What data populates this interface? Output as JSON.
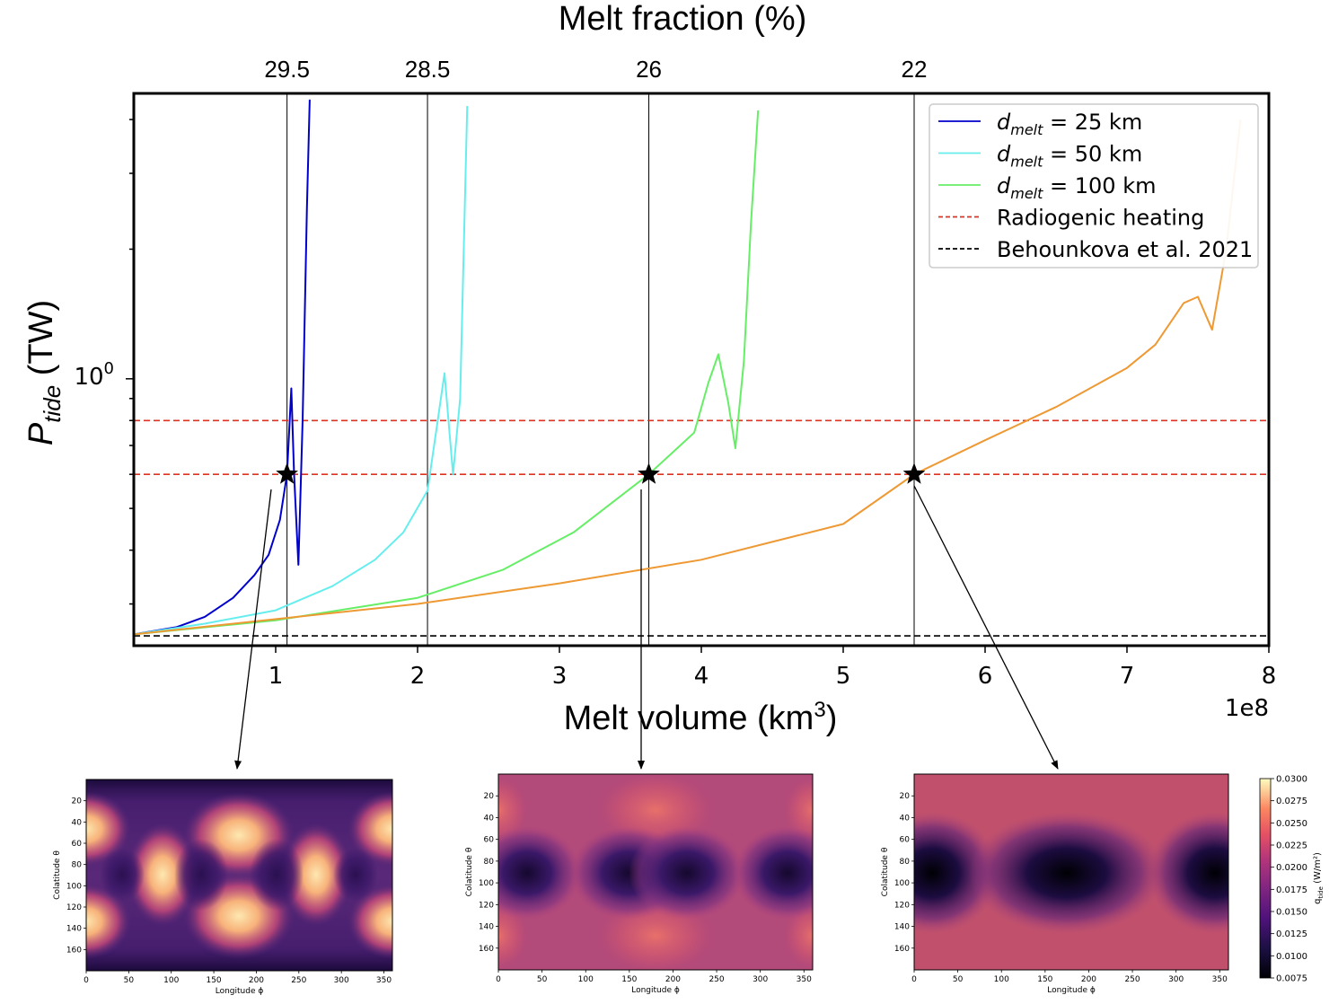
{
  "main_chart": {
    "top_axis_title": "Melt fraction (%)",
    "top_ticks": [
      "29.5",
      "28.5",
      "26",
      "22"
    ],
    "top_tick_x_values": [
      1.08,
      2.07,
      3.63,
      5.5
    ],
    "ylabel_main": "P",
    "ylabel_sub": "tide",
    "ylabel_unit": " (TW)",
    "ytick_base": "10",
    "ytick_exp": "0",
    "xlabel_text": "Melt volume (km",
    "xlabel_sup": "3",
    "xlabel_close": ")",
    "x_offset_text": "1e8",
    "xticks": [
      "1",
      "2",
      "3",
      "4",
      "5",
      "6",
      "7",
      "8"
    ],
    "xlim": [
      0.0,
      8.0
    ],
    "y_log": true,
    "ylim": [
      0.24,
      4.6
    ],
    "legend": {
      "placement": "upper right",
      "entries": [
        {
          "type": "line",
          "color": "#0000cc",
          "dash": false,
          "label_main": "d",
          "label_sub": "melt",
          "label_rest": " = 25 km"
        },
        {
          "type": "line",
          "color": "#66eeee",
          "dash": false,
          "label_main": "d",
          "label_sub": "melt",
          "label_rest": " = 50 km"
        },
        {
          "type": "line",
          "color": "#66ee66",
          "dash": false,
          "label_main": "d",
          "label_sub": "melt",
          "label_rest": " = 100 km"
        },
        {
          "type": "line",
          "color": "#dd3322",
          "dash": true,
          "label_main": "",
          "label_sub": "",
          "label_rest": "Radiogenic heating"
        },
        {
          "type": "line",
          "color": "#000000",
          "dash": true,
          "label_main": "",
          "label_sub": "",
          "label_rest": "Behounkova et al. 2021"
        }
      ]
    }
  },
  "chart_data": {
    "type": "line",
    "x_unit_multiplier": 100000000.0,
    "series": [
      {
        "name": "d_melt = 25 km",
        "color": "#0000cc",
        "x": [
          0.0,
          0.3,
          0.5,
          0.7,
          0.85,
          0.95,
          1.03,
          1.08,
          1.11,
          1.13,
          1.16,
          1.19,
          1.22,
          1.24
        ],
        "y": [
          0.255,
          0.265,
          0.28,
          0.31,
          0.35,
          0.39,
          0.47,
          0.6,
          0.95,
          0.6,
          0.37,
          0.8,
          2.5,
          4.45
        ]
      },
      {
        "name": "d_melt = 50 km",
        "color": "#66eeee",
        "x": [
          0.0,
          0.5,
          1.0,
          1.4,
          1.7,
          1.9,
          2.07,
          2.13,
          2.19,
          2.25,
          2.3,
          2.35
        ],
        "y": [
          0.255,
          0.27,
          0.29,
          0.33,
          0.38,
          0.44,
          0.55,
          0.75,
          1.03,
          0.6,
          0.9,
          4.3
        ]
      },
      {
        "name": "d_melt = 100 km",
        "color": "#66ee66",
        "x": [
          0.0,
          1.0,
          2.0,
          2.6,
          3.1,
          3.63,
          3.95,
          4.05,
          4.12,
          4.19,
          4.24,
          4.3,
          4.35,
          4.4
        ],
        "y": [
          0.255,
          0.275,
          0.31,
          0.36,
          0.44,
          0.6,
          0.75,
          0.98,
          1.14,
          0.88,
          0.69,
          1.1,
          2.3,
          4.2
        ]
      },
      {
        "name": "",
        "color": "#ee9933",
        "x": [
          0.0,
          2.0,
          3.0,
          4.0,
          5.0,
          5.5,
          6.0,
          6.5,
          7.0,
          7.2,
          7.4,
          7.5,
          7.6,
          7.7,
          7.8
        ],
        "y": [
          0.255,
          0.3,
          0.335,
          0.38,
          0.46,
          0.6,
          0.72,
          0.86,
          1.06,
          1.2,
          1.5,
          1.55,
          1.3,
          2.0,
          4.0
        ]
      }
    ],
    "hlines": [
      {
        "name": "Radiogenic heating",
        "y": [
          0.8,
          0.6
        ],
        "color": "#dd3322"
      },
      {
        "name": "Behounkova et al. 2021",
        "y": [
          0.253
        ],
        "color": "#000000"
      }
    ],
    "vlines_x": [
      1.08,
      2.07,
      3.63,
      5.5
    ],
    "stars": [
      [
        1.08,
        0.6
      ],
      [
        3.63,
        0.6
      ],
      [
        5.5,
        0.6
      ]
    ]
  },
  "panels": [
    {
      "ylabel": "Colatitude θ",
      "xlabel": "Longitude ϕ",
      "yticks": [
        "20",
        "40",
        "60",
        "80",
        "100",
        "120",
        "140",
        "160"
      ],
      "xticks": [
        "0",
        "50",
        "100",
        "150",
        "200",
        "250",
        "300",
        "350"
      ]
    },
    {
      "ylabel": "Colatitude θ",
      "xlabel": "Longitude ϕ",
      "yticks": [
        "20",
        "40",
        "60",
        "80",
        "100",
        "120",
        "140",
        "160"
      ],
      "xticks": [
        "0",
        "50",
        "100",
        "150",
        "200",
        "250",
        "300",
        "350"
      ]
    },
    {
      "ylabel": "Colatitude θ",
      "xlabel": "Longitude ϕ",
      "yticks": [
        "20",
        "40",
        "60",
        "80",
        "100",
        "120",
        "140",
        "160"
      ],
      "xticks": [
        "0",
        "50",
        "100",
        "150",
        "200",
        "250",
        "300",
        "350"
      ]
    }
  ],
  "colorbar": {
    "label": "q",
    "label_sub": "tide",
    "label_unit": " (W/m²)",
    "ticks": [
      "0.0300",
      "0.0275",
      "0.0250",
      "0.0225",
      "0.0200",
      "0.0175",
      "0.0150",
      "0.0125",
      "0.0100",
      "0.0075"
    ]
  }
}
